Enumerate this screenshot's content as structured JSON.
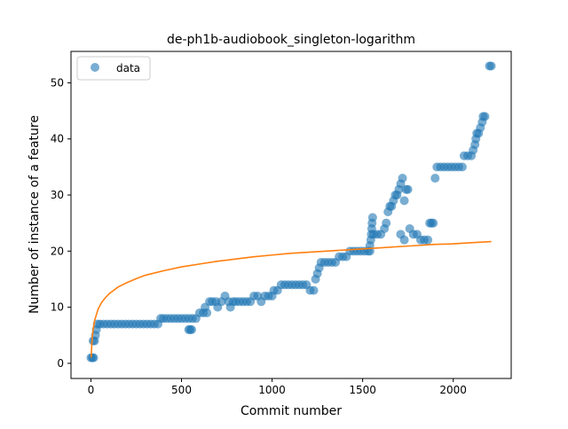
{
  "chart_data": {
    "type": "scatter",
    "title": "de-ph1b-audiobook_singleton-logarithm",
    "xlabel": "Commit number",
    "ylabel": "Number of instance of a feature",
    "xlim": [
      -110,
      2320
    ],
    "ylim": [
      -2.7,
      55.6
    ],
    "xticks": [
      0,
      500,
      1000,
      1500,
      2000
    ],
    "yticks": [
      0,
      10,
      20,
      30,
      40,
      50
    ],
    "grid": false,
    "legend": {
      "placement": "top-left",
      "entries": [
        "data"
      ]
    },
    "colors": {
      "data": "#1f77b4",
      "fit": "#ff7f0e"
    },
    "series": [
      {
        "name": "data",
        "kind": "scatter",
        "points": [
          [
            0,
            1
          ],
          [
            8,
            1
          ],
          [
            15,
            1
          ],
          [
            12,
            4
          ],
          [
            20,
            4
          ],
          [
            25,
            5
          ],
          [
            30,
            6
          ],
          [
            35,
            7
          ],
          [
            50,
            7
          ],
          [
            70,
            7
          ],
          [
            90,
            7
          ],
          [
            110,
            7
          ],
          [
            130,
            7
          ],
          [
            150,
            7
          ],
          [
            170,
            7
          ],
          [
            190,
            7
          ],
          [
            210,
            7
          ],
          [
            230,
            7
          ],
          [
            250,
            7
          ],
          [
            270,
            7
          ],
          [
            290,
            7
          ],
          [
            310,
            7
          ],
          [
            330,
            7
          ],
          [
            350,
            7
          ],
          [
            370,
            7
          ],
          [
            385,
            8
          ],
          [
            400,
            8
          ],
          [
            420,
            8
          ],
          [
            440,
            8
          ],
          [
            460,
            8
          ],
          [
            480,
            8
          ],
          [
            500,
            8
          ],
          [
            520,
            8
          ],
          [
            540,
            8
          ],
          [
            560,
            8
          ],
          [
            580,
            8
          ],
          [
            540,
            6
          ],
          [
            548,
            6
          ],
          [
            556,
            6
          ],
          [
            600,
            9
          ],
          [
            620,
            9
          ],
          [
            640,
            9
          ],
          [
            630,
            10
          ],
          [
            655,
            11
          ],
          [
            670,
            11
          ],
          [
            690,
            11
          ],
          [
            700,
            10
          ],
          [
            720,
            11
          ],
          [
            740,
            12
          ],
          [
            760,
            11
          ],
          [
            770,
            10
          ],
          [
            785,
            11
          ],
          [
            800,
            11
          ],
          [
            820,
            11
          ],
          [
            840,
            11
          ],
          [
            860,
            11
          ],
          [
            880,
            11
          ],
          [
            900,
            12
          ],
          [
            920,
            12
          ],
          [
            940,
            11
          ],
          [
            960,
            12
          ],
          [
            980,
            12
          ],
          [
            1000,
            12
          ],
          [
            1010,
            13
          ],
          [
            1030,
            13
          ],
          [
            1050,
            14
          ],
          [
            1070,
            14
          ],
          [
            1090,
            14
          ],
          [
            1110,
            14
          ],
          [
            1130,
            14
          ],
          [
            1150,
            14
          ],
          [
            1170,
            14
          ],
          [
            1190,
            14
          ],
          [
            1210,
            13
          ],
          [
            1230,
            13
          ],
          [
            1240,
            15
          ],
          [
            1250,
            16
          ],
          [
            1260,
            17
          ],
          [
            1270,
            18
          ],
          [
            1290,
            18
          ],
          [
            1310,
            18
          ],
          [
            1330,
            18
          ],
          [
            1350,
            18
          ],
          [
            1370,
            19
          ],
          [
            1390,
            19
          ],
          [
            1410,
            19
          ],
          [
            1430,
            20
          ],
          [
            1450,
            20
          ],
          [
            1470,
            20
          ],
          [
            1490,
            20
          ],
          [
            1510,
            20
          ],
          [
            1530,
            20
          ],
          [
            1540,
            20
          ],
          [
            1540,
            21
          ],
          [
            1545,
            22
          ],
          [
            1548,
            23
          ],
          [
            1550,
            24
          ],
          [
            1552,
            25
          ],
          [
            1555,
            26
          ],
          [
            1560,
            23
          ],
          [
            1580,
            23
          ],
          [
            1600,
            23
          ],
          [
            1620,
            24
          ],
          [
            1630,
            25
          ],
          [
            1640,
            27
          ],
          [
            1650,
            28
          ],
          [
            1660,
            28
          ],
          [
            1670,
            29
          ],
          [
            1680,
            30
          ],
          [
            1690,
            30
          ],
          [
            1700,
            31
          ],
          [
            1710,
            32
          ],
          [
            1720,
            33
          ],
          [
            1730,
            29
          ],
          [
            1740,
            31
          ],
          [
            1750,
            31
          ],
          [
            1710,
            23
          ],
          [
            1730,
            22
          ],
          [
            1760,
            24
          ],
          [
            1780,
            23
          ],
          [
            1800,
            23
          ],
          [
            1820,
            22
          ],
          [
            1840,
            22
          ],
          [
            1860,
            22
          ],
          [
            1870,
            25
          ],
          [
            1880,
            25
          ],
          [
            1890,
            25
          ],
          [
            1900,
            33
          ],
          [
            1910,
            35
          ],
          [
            1930,
            35
          ],
          [
            1950,
            35
          ],
          [
            1970,
            35
          ],
          [
            1990,
            35
          ],
          [
            2010,
            35
          ],
          [
            2030,
            35
          ],
          [
            2050,
            35
          ],
          [
            2060,
            37
          ],
          [
            2080,
            37
          ],
          [
            2100,
            37
          ],
          [
            2110,
            38
          ],
          [
            2120,
            39
          ],
          [
            2125,
            40
          ],
          [
            2130,
            41
          ],
          [
            2140,
            41
          ],
          [
            2150,
            42
          ],
          [
            2160,
            43
          ],
          [
            2165,
            44
          ],
          [
            2175,
            44
          ],
          [
            2200,
            53
          ],
          [
            2210,
            53
          ]
        ]
      },
      {
        "name": "",
        "kind": "line",
        "x": [
          1,
          5,
          10,
          20,
          40,
          60,
          80,
          100,
          150,
          200,
          250,
          300,
          400,
          500,
          600,
          700,
          800,
          900,
          1000,
          1100,
          1200,
          1300,
          1400,
          1500,
          1600,
          1700,
          1800,
          1900,
          2000,
          2100,
          2210
        ],
        "y": [
          1.0,
          3.5,
          5.5,
          7.6,
          9.7,
          10.9,
          11.7,
          12.4,
          13.6,
          14.4,
          15.1,
          15.7,
          16.5,
          17.2,
          17.7,
          18.2,
          18.6,
          19.0,
          19.3,
          19.6,
          19.8,
          20.0,
          20.2,
          20.4,
          20.6,
          20.8,
          21.0,
          21.2,
          21.3,
          21.5,
          21.7
        ]
      }
    ]
  }
}
